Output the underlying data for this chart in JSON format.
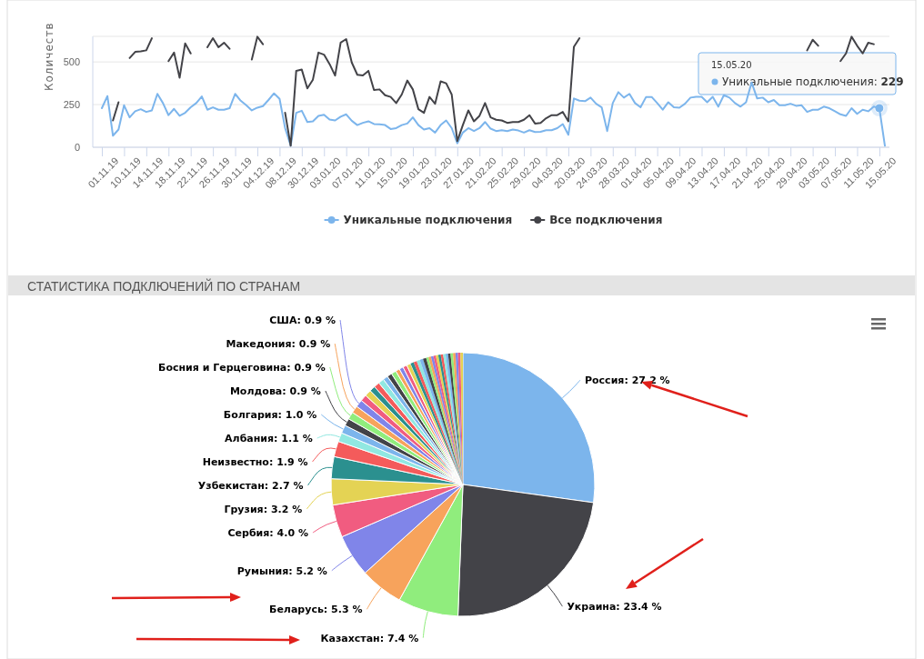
{
  "chart_data": [
    {
      "type": "line",
      "ylabel": "Количеств",
      "categories": [
        "01.11.19",
        null,
        null,
        null,
        "10.11.19",
        null,
        null,
        null,
        "14.11.19",
        null,
        null,
        null,
        "18.11.19",
        null,
        null,
        null,
        "22.11.19",
        null,
        null,
        null,
        "26.11.19",
        null,
        null,
        null,
        "30.11.19",
        null,
        null,
        null,
        "04.12.19",
        null,
        null,
        null,
        "08.12.19",
        null,
        null,
        null,
        "30.12.19",
        null,
        null,
        null,
        "03.01.20",
        null,
        null,
        null,
        "07.01.20",
        null,
        null,
        null,
        "11.01.20",
        null,
        null,
        null,
        "15.01.20",
        null,
        null,
        null,
        "19.01.20",
        null,
        null,
        null,
        "23.01.20",
        null,
        null,
        null,
        "27.01.20",
        null,
        null,
        null,
        "21.02.20",
        null,
        null,
        null,
        "25.02.20",
        null,
        null,
        null,
        "29.02.20",
        null,
        null,
        null,
        "04.03.20",
        null,
        null,
        null,
        "20.03.20",
        null,
        null,
        null,
        "24.03.20",
        null,
        null,
        null,
        "28.03.20",
        null,
        null,
        null,
        "01.04.20",
        null,
        null,
        null,
        "05.04.20",
        null,
        null,
        null,
        "09.04.20",
        null,
        null,
        null,
        "13.04.20",
        null,
        null,
        null,
        "17.04.20",
        null,
        null,
        null,
        "21.04.20",
        null,
        null,
        null,
        "25.04.20",
        null,
        null,
        null,
        "29.04.20",
        null,
        null,
        null,
        "03.05.20",
        null,
        null,
        null,
        "07.05.20",
        null,
        null,
        null,
        "11.05.20",
        null,
        null,
        null,
        "15.05.20",
        null
      ],
      "series": [
        {
          "name": "Уникальные подключения",
          "color": "#7cb5ec",
          "values": [
            229,
            300,
            68,
            104,
            246,
            175,
            211,
            223,
            207,
            216,
            313,
            259,
            188,
            225,
            184,
            202,
            234,
            259,
            298,
            220,
            234,
            220,
            220,
            229,
            313,
            273,
            246,
            216,
            232,
            241,
            277,
            316,
            284,
            112,
            9,
            202,
            214,
            148,
            152,
            184,
            191,
            162,
            157,
            179,
            193,
            155,
            130,
            143,
            152,
            136,
            134,
            130,
            107,
            112,
            130,
            139,
            175,
            130,
            104,
            112,
            86,
            130,
            157,
            112,
            23,
            86,
            112,
            95,
            112,
            148,
            109,
            95,
            100,
            95,
            104,
            98,
            86,
            100,
            89,
            91,
            100,
            100,
            112,
            136,
            73,
            286,
            273,
            270,
            291,
            255,
            234,
            95,
            259,
            323,
            291,
            313,
            259,
            234,
            295,
            295,
            259,
            220,
            264,
            234,
            232,
            255,
            291,
            296,
            296,
            264,
            296,
            238,
            305,
            291,
            259,
            238,
            264,
            380,
            286,
            291,
            264,
            277,
            246,
            246,
            255,
            243,
            246,
            207,
            220,
            220,
            238,
            229,
            211,
            193,
            184,
            229,
            196,
            220,
            211,
            238,
            229,
            9
          ]
        },
        {
          "name": "Все подключения",
          "color": "#434348",
          "values": [
            null,
            null,
            157,
            264,
            null,
            523,
            559,
            562,
            568,
            639,
            null,
            null,
            505,
            555,
            407,
            609,
            550,
            null,
            null,
            586,
            639,
            586,
            613,
            577,
            null,
            null,
            null,
            514,
            648,
            604,
            null,
            null,
            null,
            202,
            9,
            448,
            455,
            345,
            396,
            555,
            543,
            488,
            420,
            613,
            634,
            497,
            425,
            421,
            448,
            336,
            339,
            305,
            295,
            259,
            309,
            391,
            339,
            223,
            202,
            295,
            255,
            386,
            375,
            309,
            36,
            130,
            216,
            152,
            184,
            259,
            175,
            161,
            157,
            143,
            148,
            148,
            161,
            188,
            139,
            143,
            170,
            188,
            188,
            207,
            152,
            589,
            639,
            null,
            null,
            null,
            null,
            null,
            null,
            null,
            null,
            null,
            null,
            null,
            null,
            null,
            null,
            null,
            null,
            null,
            null,
            null,
            null,
            null,
            null,
            null,
            null,
            null,
            null,
            null,
            null,
            null,
            null,
            null,
            null,
            null,
            null,
            null,
            null,
            null,
            null,
            null,
            null,
            568,
            630,
            595,
            null,
            null,
            null,
            505,
            550,
            648,
            595,
            550,
            613,
            604,
            null,
            null
          ]
        }
      ],
      "ylim": [
        0,
        650
      ],
      "yticks": [
        0,
        250,
        500
      ],
      "grid": "y",
      "legend": "bottom",
      "marker": "none",
      "line_style": "solid",
      "annotations": [
        {
          "text": "15.05.20\nУникальные подключения: 229",
          "x": "15.05.20",
          "y": 229
        }
      ]
    },
    {
      "type": "pie",
      "title": "СТАТИСТИКА ПОДКЛЮЧЕНИЙ ПО СТРАНАМ",
      "categories": [
        "Россия",
        "Украина",
        "Казахстан",
        "Беларусь",
        "Румыния",
        "Сербия",
        "Грузия",
        "Узбекистан",
        "Неизвестно",
        "Албания",
        "Болгария",
        "Молдова",
        "Босния и Герцеговина",
        "Македония",
        "США",
        null,
        null,
        null,
        null,
        null,
        null,
        null,
        null,
        null,
        null,
        null,
        null,
        null,
        null,
        null,
        null,
        null,
        null,
        null,
        null,
        null,
        null,
        null,
        null,
        null,
        null,
        null,
        null,
        null,
        null,
        null,
        null
      ],
      "values": [
        27.2,
        23.4,
        7.4,
        5.3,
        5.2,
        4.0,
        3.2,
        2.7,
        1.9,
        1.1,
        1.0,
        0.9,
        0.9,
        0.9,
        0.9,
        0.8,
        0.8,
        0.7,
        0.7,
        0.7,
        0.6,
        0.6,
        0.6,
        0.5,
        0.5,
        0.5,
        0.5,
        0.4,
        0.4,
        0.4,
        0.4,
        0.4,
        0.3,
        0.3,
        0.3,
        0.3,
        0.3,
        0.3,
        0.3,
        0.3,
        0.3,
        0.3,
        0.3,
        0.3,
        0.3,
        0.3,
        0.3
      ],
      "value_labels": [
        "27.2 %",
        "23.4 %",
        "7.4 %",
        "5.3 %",
        "5.2 %",
        "4.0 %",
        "3.2 %",
        "2.7 %",
        "1.9 %",
        "1.1 %",
        "1.0 %",
        "0.9 %",
        "0.9 %",
        "0.9 %",
        "0.9 %",
        null,
        null,
        null,
        null,
        null,
        null,
        null,
        null,
        null,
        null,
        null,
        null,
        null,
        null,
        null,
        null,
        null,
        null,
        null,
        null,
        null,
        null,
        null,
        null,
        null,
        null,
        null,
        null,
        null,
        null,
        null,
        null
      ],
      "colors": [
        "#7cb5ec",
        "#434348",
        "#90ed7d",
        "#f7a35c",
        "#8085e9",
        "#f15c80",
        "#e4d354",
        "#2b908f",
        "#f45b5b",
        "#91e8e1",
        "#7cb5ec",
        "#434348",
        "#90ed7d",
        "#f7a35c",
        "#8085e9",
        "#f15c80",
        "#e4d354",
        "#2b908f",
        "#f45b5b",
        "#91e8e1",
        "#7cb5ec",
        "#434348",
        "#90ed7d",
        "#f7a35c",
        "#8085e9",
        "#f15c80",
        "#e4d354",
        "#2b908f",
        "#f45b5b",
        "#91e8e1",
        "#7cb5ec",
        "#434348",
        "#90ed7d",
        "#f7a35c",
        "#8085e9",
        "#f15c80",
        "#e4d354",
        "#2b908f",
        "#f45b5b",
        "#91e8e1",
        "#7cb5ec",
        "#434348",
        "#90ed7d",
        "#f7a35c",
        "#8085e9",
        "#f15c80",
        "#e4d354"
      ]
    }
  ]
}
